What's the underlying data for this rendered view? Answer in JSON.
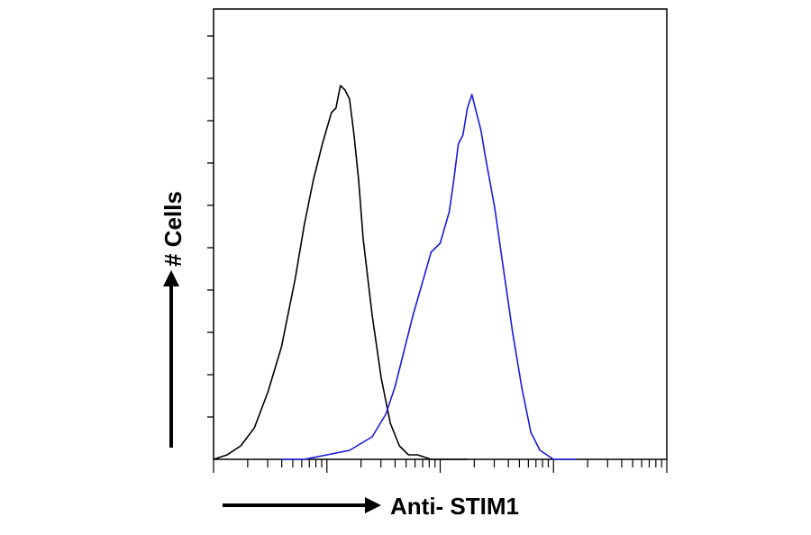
{
  "chart_data": {
    "type": "line",
    "title": "",
    "xlabel": "Anti- STIM1",
    "ylabel": "# Cells",
    "x_scale": "log",
    "grid": false,
    "legend": "none",
    "y_ticks": 10,
    "series": [
      {
        "color": "#000000",
        "x": [
          0.0,
          0.03,
          0.06,
          0.09,
          0.12,
          0.15,
          0.18,
          0.2,
          0.22,
          0.24,
          0.26,
          0.27,
          0.28,
          0.29,
          0.3,
          0.31,
          0.32,
          0.33,
          0.35,
          0.37,
          0.39,
          0.41,
          0.43,
          0.45,
          0.48,
          0.52,
          0.56
        ],
        "y": [
          0.0,
          0.01,
          0.03,
          0.07,
          0.15,
          0.25,
          0.4,
          0.52,
          0.62,
          0.7,
          0.77,
          0.78,
          0.83,
          0.82,
          0.8,
          0.72,
          0.62,
          0.49,
          0.32,
          0.18,
          0.08,
          0.03,
          0.01,
          0.01,
          0.0,
          0.0,
          0.0
        ]
      },
      {
        "color": "#1a1adc",
        "x": [
          0.15,
          0.2,
          0.25,
          0.3,
          0.35,
          0.38,
          0.4,
          0.42,
          0.44,
          0.46,
          0.48,
          0.5,
          0.52,
          0.53,
          0.54,
          0.55,
          0.56,
          0.57,
          0.58,
          0.59,
          0.6,
          0.62,
          0.64,
          0.66,
          0.68,
          0.7,
          0.72,
          0.75,
          0.8
        ],
        "y": [
          0.0,
          0.0,
          0.01,
          0.02,
          0.05,
          0.1,
          0.16,
          0.24,
          0.32,
          0.39,
          0.46,
          0.48,
          0.55,
          0.62,
          0.7,
          0.72,
          0.78,
          0.81,
          0.77,
          0.73,
          0.67,
          0.56,
          0.42,
          0.28,
          0.16,
          0.06,
          0.02,
          0.0,
          0.0
        ]
      }
    ]
  }
}
